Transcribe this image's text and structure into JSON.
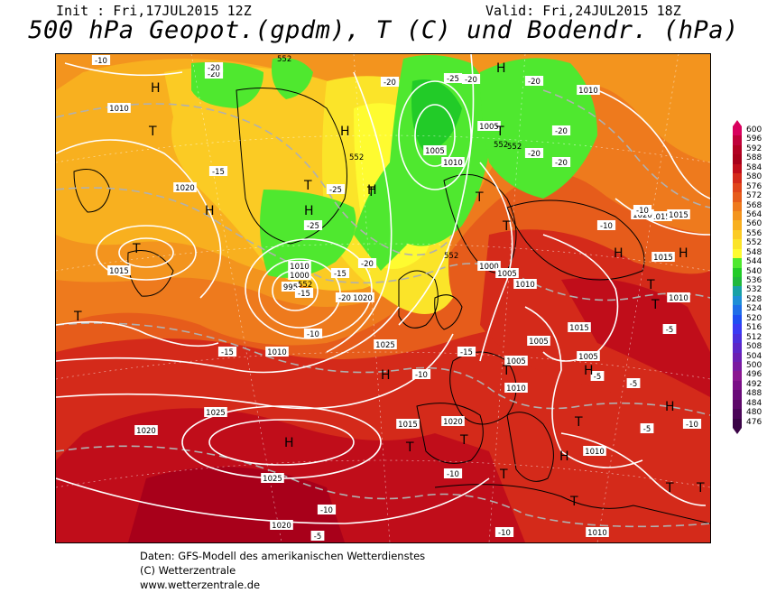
{
  "header": {
    "init": "Init : Fri,17JUL2015 12Z",
    "valid": "Valid: Fri,24JUL2015 18Z",
    "title": "500 hPa Geopot.(gpdm), T (C) und Bodendr. (hPa)"
  },
  "legend": {
    "values": [
      "600",
      "596",
      "592",
      "588",
      "584",
      "580",
      "576",
      "572",
      "568",
      "564",
      "560",
      "556",
      "552",
      "548",
      "544",
      "540",
      "536",
      "532",
      "528",
      "524",
      "520",
      "516",
      "512",
      "508",
      "504",
      "500",
      "496",
      "492",
      "488",
      "484",
      "480",
      "476"
    ],
    "colors": [
      "#d9005e",
      "#c0003a",
      "#b20022",
      "#a8001a",
      "#c00d1a",
      "#d42a1a",
      "#e0451a",
      "#e65c1b",
      "#ee7a1d",
      "#f3941e",
      "#f8b01f",
      "#fbcb24",
      "#fbe429",
      "#fefb30",
      "#4fe82f",
      "#22cb28",
      "#20b83d",
      "#18a0a6",
      "#1e8ed6",
      "#1f6ee8",
      "#1f4ef2",
      "#3a3af3",
      "#4b2fdc",
      "#5c26c7",
      "#6b1fb2",
      "#7a1aa0",
      "#8a1690",
      "#7a0e86",
      "#690a78",
      "#5d0868",
      "#4b0558",
      "#3a0346"
    ]
  },
  "map": {
    "pressure_labels": [
      "1010",
      "1015",
      "1020",
      "1025",
      "1005",
      "1000",
      "995",
      "1010",
      "1015",
      "1020",
      "1005",
      "1010",
      "1025",
      "1020",
      "1015",
      "1020",
      "1010",
      "1025",
      "1005",
      "1010",
      "1000",
      "1005",
      "1010",
      "1015",
      "1015",
      "1010",
      "1010",
      "1005",
      "1020",
      "1015",
      "1010",
      "1010",
      "1005",
      "1020"
    ],
    "temp_labels": [
      "-10",
      "-20",
      "-15",
      "-20",
      "-25",
      "-20",
      "-20",
      "-15",
      "-25",
      "-20",
      "-15",
      "-20",
      "-10",
      "-15",
      "-10",
      "-10",
      "-10",
      "-5",
      "-10",
      "-5",
      "-10",
      "-15",
      "-20",
      "-25",
      "-20",
      "-20",
      "-20",
      "-10",
      "-10",
      "-5",
      "-5",
      "-5"
    ],
    "geopot_labels": [
      "552",
      "552",
      "552",
      "552",
      "552",
      "552"
    ],
    "high_marker": "H",
    "low_marker": "T"
  },
  "footer": {
    "line1": "Daten: GFS-Modell des amerikanischen Wetterdienstes",
    "line2": "(C) Wetterzentrale",
    "line3": "www.wetterzentrale.de"
  }
}
